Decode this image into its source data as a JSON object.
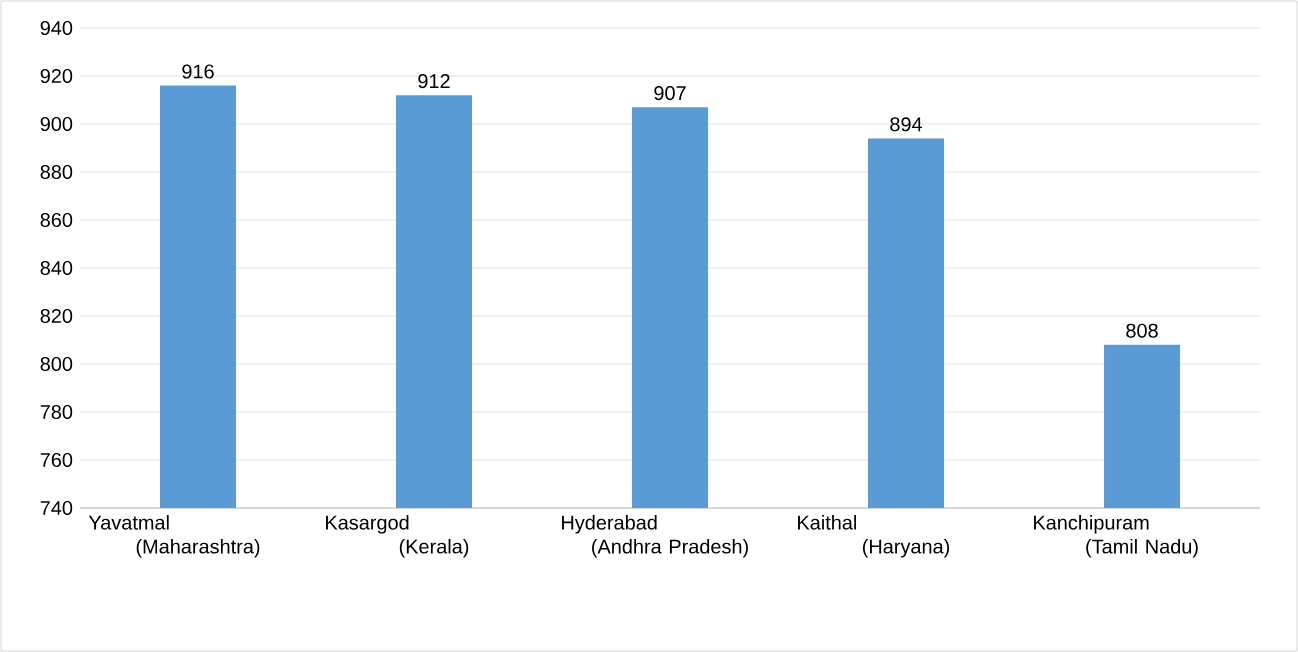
{
  "chart_data": {
    "type": "bar",
    "categories": [
      "Yavatmal (Maharashtra)",
      "Kasargod (Kerala)",
      "Hyderabad (Andhra Pradesh)",
      "Kaithal (Haryana)",
      "Kanchipuram (Tamil Nadu)"
    ],
    "values": [
      916,
      912,
      907,
      894,
      808
    ],
    "color": "#5b9bd5",
    "ylim": [
      740,
      940
    ],
    "yticks": [
      740,
      760,
      780,
      800,
      820,
      840,
      860,
      880,
      900,
      920,
      940
    ],
    "grid": "y",
    "data_labels": true
  }
}
